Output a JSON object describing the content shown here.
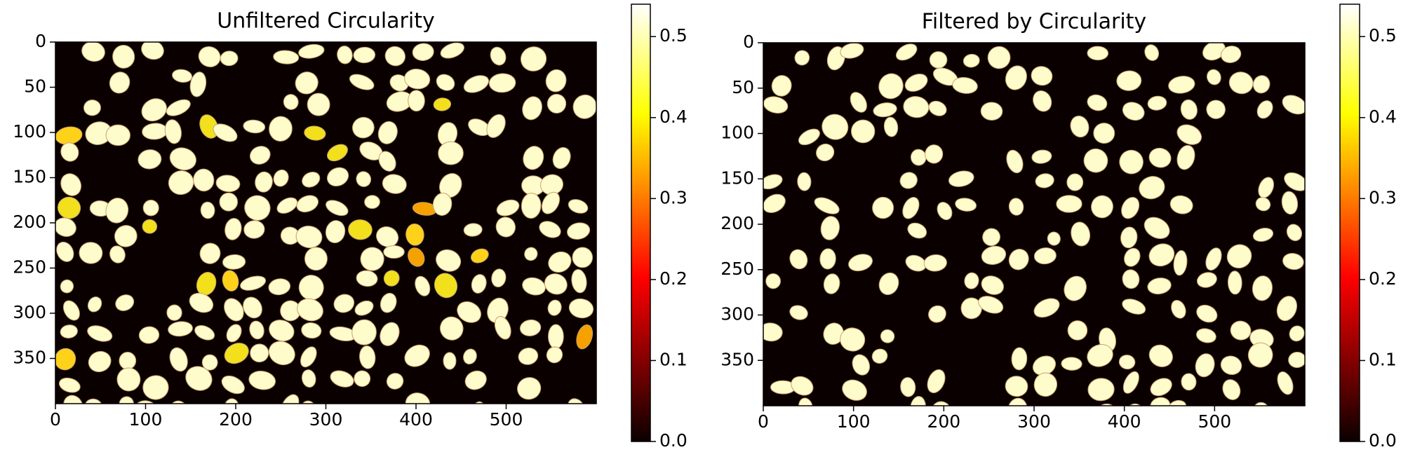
{
  "chart_data": [
    {
      "type": "image",
      "title": "Unfiltered Circularity",
      "xlim": [
        0,
        600
      ],
      "xticks": [
        0,
        100,
        200,
        300,
        400,
        500
      ],
      "ylim": [
        400,
        0
      ],
      "yticks": [
        0,
        50,
        100,
        150,
        200,
        250,
        300,
        350
      ],
      "colormap": "hot",
      "clim": [
        0,
        0.54
      ],
      "cticks": [
        {
          "value": 0,
          "label": "0.0"
        },
        0.1,
        0.2,
        0.3,
        0.4,
        0.5
      ]
    },
    {
      "type": "image",
      "title": "Filtered by Circularity",
      "xlim": [
        0,
        600
      ],
      "xticks": [
        0,
        100,
        200,
        300,
        400,
        500
      ],
      "ylim": [
        400,
        0
      ],
      "yticks": [
        0,
        50,
        100,
        150,
        200,
        250,
        300,
        350
      ],
      "colormap": "hot",
      "clim": [
        0,
        0.54
      ],
      "cticks": [
        {
          "value": 0,
          "label": "0.0"
        },
        0.1,
        0.2,
        0.3,
        0.4,
        0.5
      ]
    }
  ]
}
